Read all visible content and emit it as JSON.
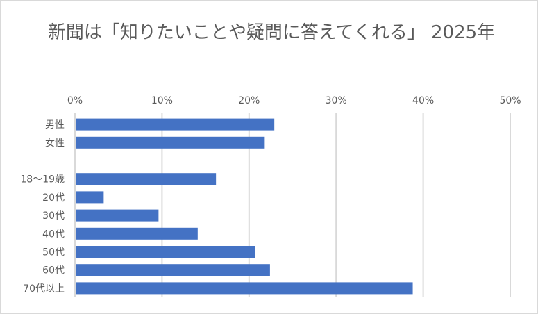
{
  "chart_data": {
    "type": "bar",
    "orientation": "horizontal",
    "title": "新聞は「知りたいことや疑問に答えてくれる」 2025年",
    "categories": [
      "男性",
      "女性",
      "",
      "18〜19歳",
      "20代",
      "30代",
      "40代",
      "50代",
      "60代",
      "70代以上"
    ],
    "values": [
      22.9,
      21.8,
      null,
      16.2,
      3.3,
      9.6,
      14.1,
      20.7,
      22.4,
      38.8
    ],
    "xlim": [
      0,
      50
    ],
    "xticks": [
      "0%",
      "10%",
      "20%",
      "30%",
      "40%",
      "50%"
    ],
    "xaxis_position": "top",
    "grid": true,
    "legend": "none",
    "bar_color": "#4472C4",
    "grid_color": "#D9D9D9"
  }
}
